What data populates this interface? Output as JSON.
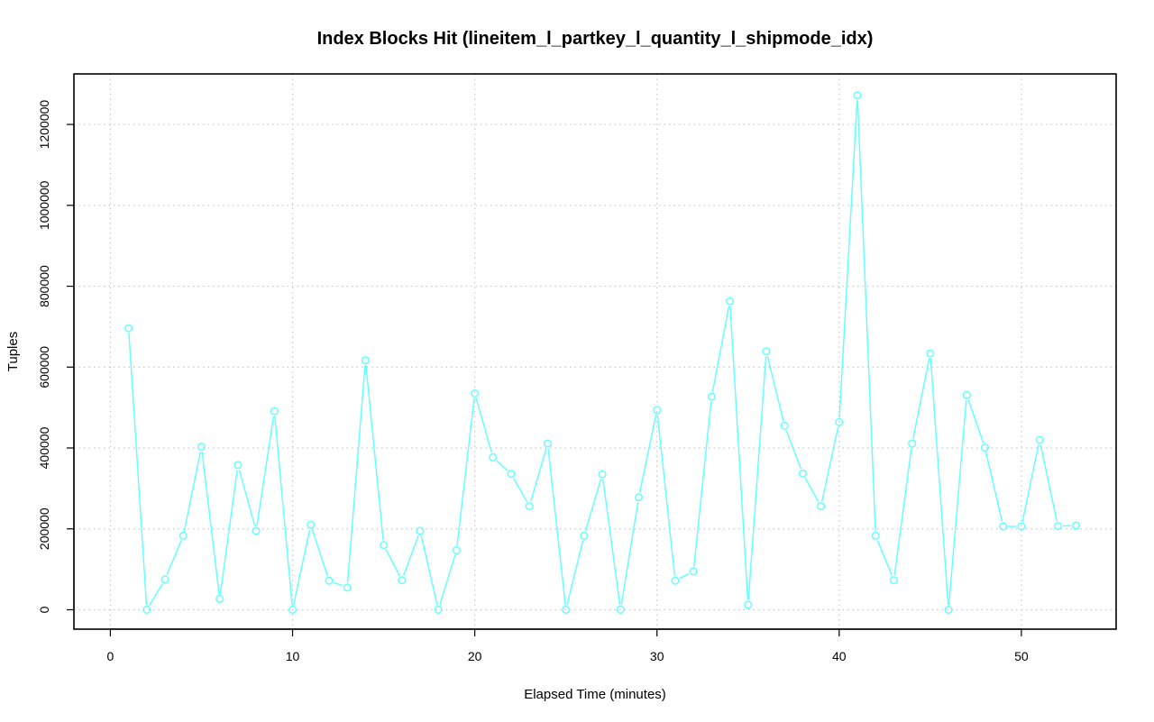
{
  "chart_data": {
    "type": "line",
    "title": "Index Blocks Hit (lineitem_l_partkey_l_quantity_l_shipmode_idx)",
    "xlabel": "Elapsed Time (minutes)",
    "ylabel": "Tuples",
    "xlim": [
      -2,
      55.2
    ],
    "ylim": [
      -48000,
      1325000
    ],
    "xticks": [
      0,
      10,
      20,
      30,
      40,
      50
    ],
    "xtick_labels": [
      "0",
      "10",
      "20",
      "30",
      "40",
      "50"
    ],
    "yticks": [
      0,
      200000,
      400000,
      600000,
      800000,
      1000000,
      1200000
    ],
    "ytick_labels": [
      "0",
      "200000",
      "400000",
      "600000",
      "800000",
      "1000000",
      "1200000"
    ],
    "grid": true,
    "series": [
      {
        "color": "#66ffff",
        "marker": "open-circle",
        "x": [
          1,
          2,
          3,
          4,
          5,
          6,
          7,
          8,
          9,
          10,
          11,
          12,
          13,
          14,
          15,
          16,
          17,
          18,
          19,
          20,
          21,
          22,
          23,
          24,
          25,
          26,
          27,
          28,
          29,
          30,
          31,
          32,
          33,
          34,
          35,
          36,
          37,
          38,
          39,
          40,
          41,
          42,
          43,
          44,
          45,
          46,
          47,
          48,
          49,
          50,
          51,
          52,
          53
        ],
        "values": [
          696000,
          0,
          75000,
          183000,
          403000,
          27000,
          358000,
          195000,
          491000,
          0,
          210000,
          72000,
          55000,
          617000,
          160000,
          73000,
          195000,
          0,
          147000,
          535000,
          377000,
          336000,
          256000,
          411000,
          0,
          183000,
          335000,
          0,
          278000,
          494000,
          72000,
          95000,
          527000,
          763000,
          12000,
          639000,
          455000,
          337000,
          256000,
          464000,
          1272000,
          183000,
          73000,
          411000,
          634000,
          0,
          531000,
          401000,
          206000,
          206000,
          420000,
          207000,
          208000
        ]
      }
    ]
  }
}
